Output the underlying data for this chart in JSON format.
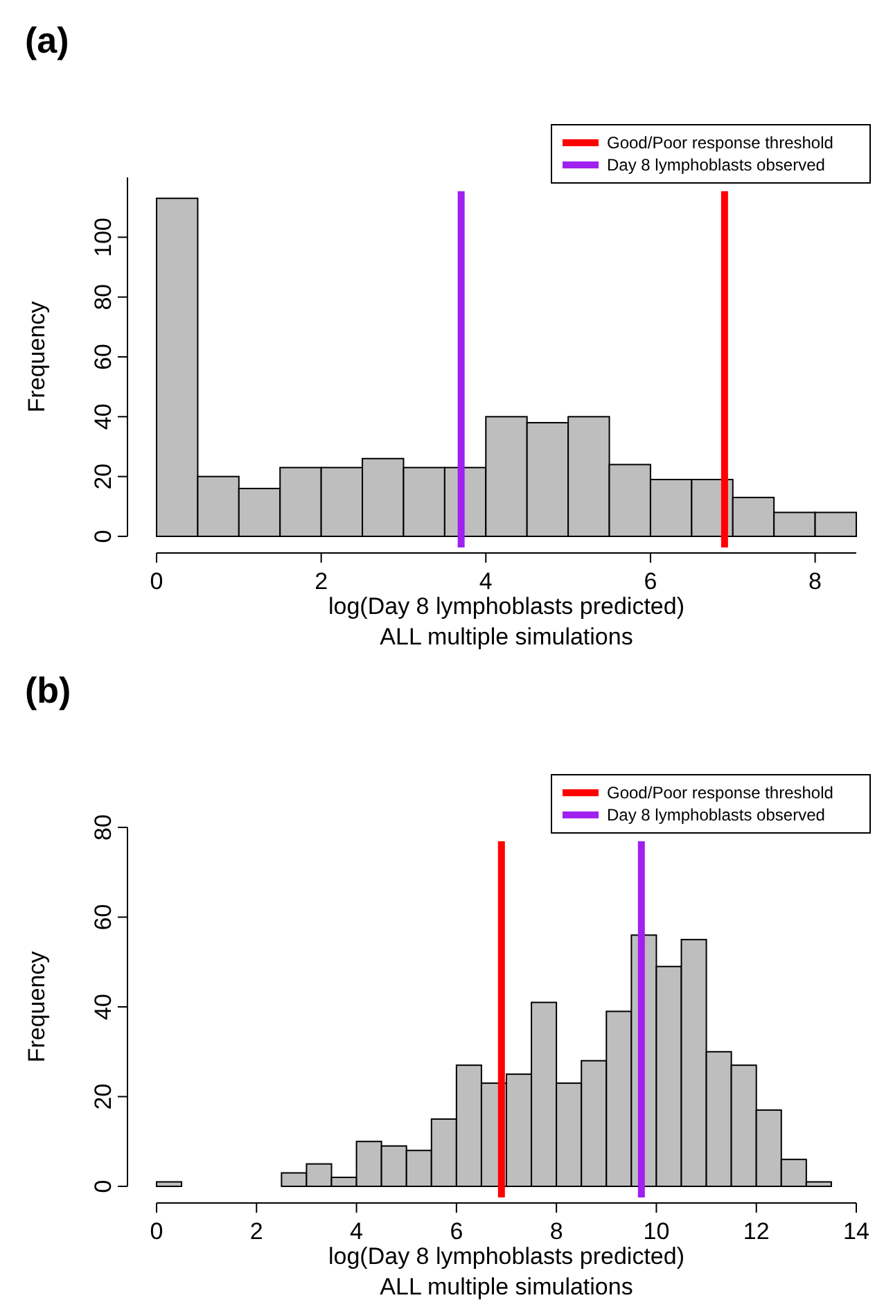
{
  "chart_data": [
    {
      "type": "histogram",
      "title": "(a)",
      "xlabel": "log(Day 8 lymphoblasts predicted)",
      "ylabel": "Frequency",
      "annotations": [
        "ALL multiple simulations"
      ],
      "bins": [
        0,
        0.5,
        1,
        1.5,
        2,
        2.5,
        3,
        3.5,
        4,
        4.5,
        5,
        5.5,
        6,
        6.5,
        7,
        7.5,
        8,
        8.5
      ],
      "values": [
        113,
        20,
        16,
        23,
        23,
        26,
        23,
        23,
        40,
        38,
        40,
        24,
        19,
        19,
        13,
        8,
        8
      ],
      "color": "#bebebe",
      "xlim": [
        0,
        8.5
      ],
      "xticks": [
        0,
        2,
        4,
        6,
        8
      ],
      "ylim": [
        0,
        120
      ],
      "yticks": [
        0,
        20,
        40,
        60,
        80,
        100
      ],
      "ref_lines": [
        {
          "axis": "x",
          "value": 6.9,
          "label": "Good/Poor response threshold",
          "color": "#ff0000"
        },
        {
          "axis": "x",
          "value": 3.7,
          "label": "Day 8 lymphoblasts observed",
          "color": "#a020f0"
        }
      ],
      "legend": "top right",
      "grid": false
    },
    {
      "type": "histogram",
      "title": "(b)",
      "xlabel": "log(Day 8 lymphoblasts predicted)",
      "ylabel": "Frequency",
      "annotations": [
        "ALL multiple simulations"
      ],
      "bins": [
        0,
        0.5,
        1,
        1.5,
        2,
        2.5,
        3,
        3.5,
        4,
        4.5,
        5,
        5.5,
        6,
        6.5,
        7,
        7.5,
        8,
        8.5,
        9,
        9.5,
        10,
        10.5,
        11,
        11.5,
        12,
        12.5,
        13,
        13.5
      ],
      "values": [
        1,
        0,
        0,
        0,
        0,
        3,
        5,
        2,
        10,
        9,
        8,
        15,
        27,
        23,
        25,
        41,
        23,
        28,
        39,
        56,
        49,
        55,
        30,
        27,
        17,
        6,
        1
      ],
      "color": "#bebebe",
      "xlim": [
        0,
        14
      ],
      "xticks": [
        0,
        2,
        4,
        6,
        8,
        10,
        12,
        14
      ],
      "ylim": [
        0,
        80
      ],
      "yticks": [
        0,
        20,
        40,
        60,
        80
      ],
      "ref_lines": [
        {
          "axis": "x",
          "value": 6.9,
          "label": "Good/Poor response threshold",
          "color": "#ff0000"
        },
        {
          "axis": "x",
          "value": 9.7,
          "label": "Day 8 lymphoblasts observed",
          "color": "#a020f0"
        }
      ],
      "legend": "top right",
      "grid": false
    }
  ]
}
